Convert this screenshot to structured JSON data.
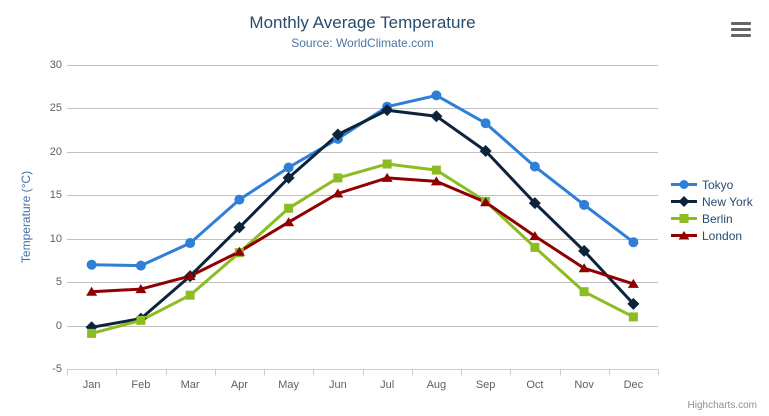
{
  "header": {
    "title": "Monthly Average Temperature",
    "subtitle": "Source: WorldClimate.com"
  },
  "credits": {
    "label": "Highcharts.com"
  },
  "context_menu": {
    "icon": "hamburger-icon"
  },
  "colors": {
    "title": "#274b6d",
    "subtitle": "#4d759e",
    "axis_title": "#4572a7",
    "tick_label": "#606060",
    "legend_text": "#274b6d",
    "grid_line": "#c0c0c0",
    "axis_line": "#c0d0e0",
    "credits_text": "#909090",
    "menu_icon": "#666666"
  },
  "chart_data": {
    "type": "line",
    "title": "Monthly Average Temperature",
    "subtitle": "Source: WorldClimate.com",
    "xlabel": "",
    "ylabel": "Temperature (°C)",
    "ylim": [
      -5,
      30
    ],
    "yticks": [
      -5,
      0,
      5,
      10,
      15,
      20,
      25,
      30
    ],
    "grid": true,
    "legend_position": "right",
    "categories": [
      "Jan",
      "Feb",
      "Mar",
      "Apr",
      "May",
      "Jun",
      "Jul",
      "Aug",
      "Sep",
      "Oct",
      "Nov",
      "Dec"
    ],
    "series": [
      {
        "name": "Tokyo",
        "color": "#2f7ed8",
        "marker": "circle",
        "values": [
          7.0,
          6.9,
          9.5,
          14.5,
          18.2,
          21.5,
          25.2,
          26.5,
          23.3,
          18.3,
          13.9,
          9.6
        ]
      },
      {
        "name": "New York",
        "color": "#0d233a",
        "marker": "diamond",
        "values": [
          -0.2,
          0.8,
          5.7,
          11.3,
          17.0,
          22.0,
          24.8,
          24.1,
          20.1,
          14.1,
          8.6,
          2.5
        ]
      },
      {
        "name": "Berlin",
        "color": "#8bbc21",
        "marker": "square",
        "values": [
          -0.9,
          0.6,
          3.5,
          8.4,
          13.5,
          17.0,
          18.6,
          17.9,
          14.3,
          9.0,
          3.9,
          1.0
        ]
      },
      {
        "name": "London",
        "color": "#910000",
        "marker": "triangle",
        "values": [
          3.9,
          4.2,
          5.7,
          8.5,
          11.9,
          15.2,
          17.0,
          16.6,
          14.2,
          10.3,
          6.6,
          4.8
        ]
      }
    ]
  }
}
